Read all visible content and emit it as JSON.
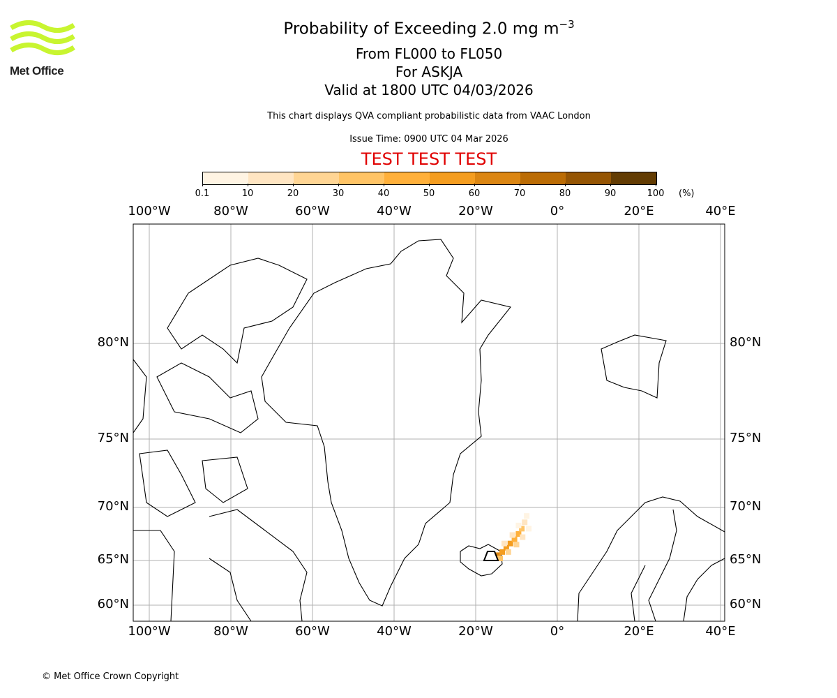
{
  "logo": {
    "text": "Met Office",
    "color": "#c8f530"
  },
  "title": {
    "main": "Probability of Exceeding 2.0 mg m",
    "superscript": "−3",
    "line2": "From FL000 to FL050",
    "line3": "For ASKJA",
    "line4": "Valid at 1800 UTC 04/03/2026"
  },
  "info": "This chart displays QVA compliant probabilistic data from VAAC London",
  "issue_time": "Issue Time: 0900 UTC 04 Mar 2026",
  "test_banner": "TEST TEST TEST",
  "copyright": "© Met Office Crown Copyright",
  "chart_data": {
    "type": "map",
    "colorbar": {
      "ticks": [
        "0.1",
        "10",
        "20",
        "30",
        "40",
        "50",
        "60",
        "70",
        "80",
        "90",
        "100"
      ],
      "unit": "(%)",
      "colors": [
        "#fff4e3",
        "#ffe5c2",
        "#ffd594",
        "#ffc466",
        "#ffb03b",
        "#f49d20",
        "#db8613",
        "#bb6c05",
        "#955504",
        "#633c03"
      ]
    },
    "lon_labels": [
      "100°W",
      "80°W",
      "60°W",
      "40°W",
      "20°W",
      "0°",
      "20°E",
      "40°E"
    ],
    "lat_labels": [
      "80°N",
      "75°N",
      "70°N",
      "65°N",
      "60°N"
    ],
    "volcano": {
      "name": "ASKJA",
      "lon": -16.7,
      "lat": 65.0
    },
    "plume_cells": [
      {
        "lon": -15.5,
        "lat": 65.2,
        "p": 55
      },
      {
        "lon": -14.5,
        "lat": 65.5,
        "p": 60
      },
      {
        "lon": -13.5,
        "lat": 65.8,
        "p": 55
      },
      {
        "lon": -12.5,
        "lat": 66.2,
        "p": 50
      },
      {
        "lon": -11.5,
        "lat": 66.6,
        "p": 55
      },
      {
        "lon": -10.5,
        "lat": 67.0,
        "p": 45
      },
      {
        "lon": -9.5,
        "lat": 67.5,
        "p": 40
      },
      {
        "lon": -8.7,
        "lat": 68.0,
        "p": 30
      },
      {
        "lon": -8.0,
        "lat": 68.6,
        "p": 15
      },
      {
        "lon": -7.5,
        "lat": 69.2,
        "p": 5
      },
      {
        "lon": -14.0,
        "lat": 65.2,
        "p": 30
      },
      {
        "lon": -12.0,
        "lat": 65.8,
        "p": 20
      },
      {
        "lon": -10.0,
        "lat": 66.5,
        "p": 20
      },
      {
        "lon": -8.5,
        "lat": 67.2,
        "p": 15
      },
      {
        "lon": -13.0,
        "lat": 66.6,
        "p": 15
      },
      {
        "lon": -11.0,
        "lat": 67.4,
        "p": 10
      },
      {
        "lon": -9.5,
        "lat": 68.3,
        "p": 8
      },
      {
        "lon": -7.0,
        "lat": 68.0,
        "p": 5
      }
    ]
  }
}
